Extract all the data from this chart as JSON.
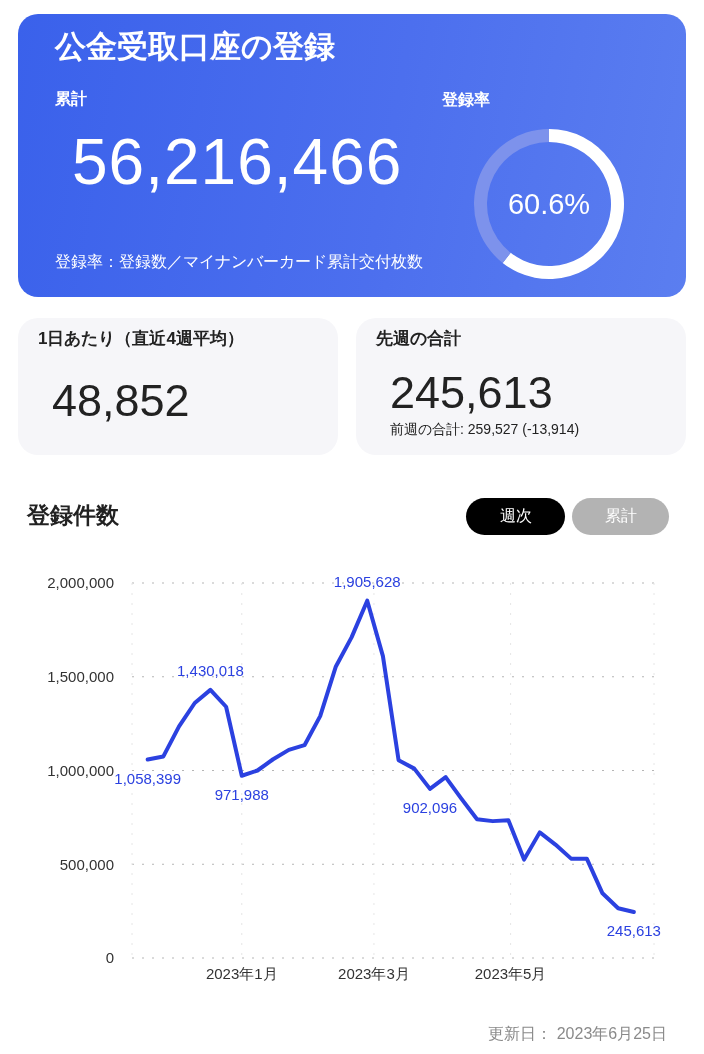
{
  "chart_data": [
    {
      "type": "other",
      "title": "公金受取口座の登録",
      "subtitle": "累計",
      "annotations": [
        "56,216,466",
        "登録率：登録数／マイナンバーカード累計交付枚数"
      ]
    },
    {
      "type": "donut",
      "title": "登録率",
      "categories": [
        null,
        null
      ],
      "values": [
        60.6,
        39.4
      ],
      "colors": [
        "#ffffff",
        "#7d92ec"
      ],
      "value_labels": [
        "60.6%",
        null
      ]
    },
    {
      "type": "other",
      "title": "1日あたり（直近4週平均）",
      "annotations": [
        "48,852"
      ]
    },
    {
      "type": "other",
      "title": "先週の合計",
      "annotations": [
        "245,613",
        "前週の合計: 259,527 (-13,914)"
      ]
    },
    {
      "type": "line",
      "title": "登録件数",
      "annotations": [
        "週次",
        "累計",
        "更新日： 2023年6月25日"
      ],
      "x": [
        "2022-11-20",
        "2022-11-27",
        "2022-12-04",
        "2022-12-11",
        "2022-12-18",
        "2022-12-25",
        "2023-01-01",
        "2023-01-08",
        "2023-01-15",
        "2023-01-22",
        "2023-01-29",
        "2023-02-05",
        "2023-02-12",
        "2023-02-19",
        "2023-02-26",
        "2023-03-05",
        "2023-03-12",
        "2023-03-19",
        "2023-03-26",
        "2023-04-02",
        "2023-04-09",
        "2023-04-16",
        "2023-04-23",
        "2023-04-30",
        "2023-05-07",
        "2023-05-14",
        "2023-05-21",
        "2023-05-28",
        "2023-06-04",
        "2023-06-11",
        "2023-06-18",
        "2023-06-25"
      ],
      "series": [
        {
          "color": "#2b41e0",
          "values": [
            1058399,
            1075000,
            1235000,
            1360000,
            1430018,
            1340000,
            971988,
            1000000,
            1060000,
            1110000,
            1135000,
            1290000,
            1555000,
            1710000,
            1905628,
            1610000,
            1055000,
            1010000,
            902096,
            965000,
            850000,
            740000,
            730000,
            735000,
            525000,
            670000,
            605000,
            530000,
            530000,
            345000,
            265000,
            245613
          ],
          "value_labels": [
            "1,058,399",
            null,
            null,
            null,
            "1,430,018",
            null,
            "971,988",
            null,
            null,
            null,
            null,
            null,
            null,
            null,
            "1,905,628",
            null,
            null,
            null,
            "902,096",
            null,
            null,
            null,
            null,
            null,
            null,
            null,
            null,
            null,
            null,
            null,
            null,
            "245,613"
          ]
        }
      ],
      "xlim": [
        "2022-11-13",
        "2023-07-04"
      ],
      "xticks": [
        {
          "value": "2023-01-01",
          "label": "2023年1月"
        },
        {
          "value": "2023-03-01",
          "label": "2023年3月"
        },
        {
          "value": "2023-05-01",
          "label": "2023年5月"
        }
      ],
      "ylim": [
        0,
        2000000
      ],
      "yticks": [
        0,
        {
          "value": 500000,
          "label": "500,000"
        },
        {
          "value": 1000000,
          "label": "1,000,000"
        },
        {
          "value": 1500000,
          "label": "1,500,000"
        },
        {
          "value": 2000000,
          "label": "2,000,000"
        }
      ],
      "grid": true,
      "marker": "none"
    }
  ]
}
